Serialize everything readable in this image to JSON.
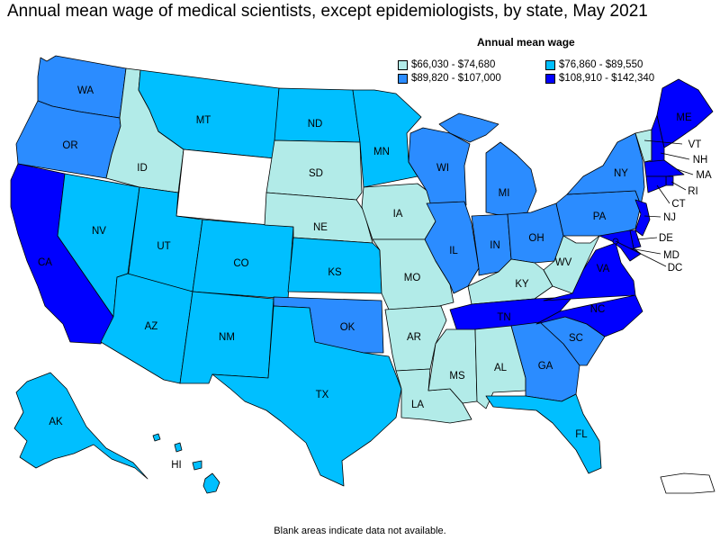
{
  "title": "Annual mean wage of medical scientists, except epidemiologists, by state, May 2021",
  "legend": {
    "title": "Annual mean wage",
    "items": [
      {
        "label": "$66,030 - $74,680",
        "color": "#b2ebe8"
      },
      {
        "label": "$76,860 - $89,550",
        "color": "#00bfff"
      },
      {
        "label": "$89,820 - $107,000",
        "color": "#2b8cff"
      },
      {
        "label": "$108,910 - $142,340",
        "color": "#0000ff"
      }
    ]
  },
  "footnote": "Blank areas indicate data not available.",
  "no_data_color": "#ffffff",
  "states": {
    "WA": {
      "label": "WA",
      "tier": 2
    },
    "OR": {
      "label": "OR",
      "tier": 2
    },
    "CA": {
      "label": "CA",
      "tier": 3
    },
    "NV": {
      "label": "NV",
      "tier": 1
    },
    "ID": {
      "label": "ID",
      "tier": 0
    },
    "MT": {
      "label": "MT",
      "tier": 1
    },
    "WY": {
      "label": "",
      "tier": -1
    },
    "UT": {
      "label": "UT",
      "tier": 1
    },
    "AZ": {
      "label": "AZ",
      "tier": 1
    },
    "CO": {
      "label": "CO",
      "tier": 1
    },
    "NM": {
      "label": "NM",
      "tier": 1
    },
    "ND": {
      "label": "ND",
      "tier": 1
    },
    "SD": {
      "label": "SD",
      "tier": 0
    },
    "NE": {
      "label": "NE",
      "tier": 0
    },
    "KS": {
      "label": "KS",
      "tier": 1
    },
    "OK": {
      "label": "OK",
      "tier": 2
    },
    "TX": {
      "label": "TX",
      "tier": 1
    },
    "MN": {
      "label": "MN",
      "tier": 1
    },
    "IA": {
      "label": "IA",
      "tier": 0
    },
    "MO": {
      "label": "MO",
      "tier": 0
    },
    "AR": {
      "label": "AR",
      "tier": 0
    },
    "LA": {
      "label": "LA",
      "tier": 0
    },
    "WI": {
      "label": "WI",
      "tier": 2
    },
    "IL": {
      "label": "IL",
      "tier": 2
    },
    "MI": {
      "label": "MI",
      "tier": 2
    },
    "IN": {
      "label": "IN",
      "tier": 2
    },
    "OH": {
      "label": "OH",
      "tier": 2
    },
    "KY": {
      "label": "KY",
      "tier": 0
    },
    "TN": {
      "label": "TN",
      "tier": 3
    },
    "MS": {
      "label": "MS",
      "tier": 0
    },
    "AL": {
      "label": "AL",
      "tier": 0
    },
    "GA": {
      "label": "GA",
      "tier": 2
    },
    "FL": {
      "label": "FL",
      "tier": 1
    },
    "SC": {
      "label": "SC",
      "tier": 2
    },
    "NC": {
      "label": "NC",
      "tier": 3
    },
    "VA": {
      "label": "VA",
      "tier": 3
    },
    "WV": {
      "label": "WV",
      "tier": 0
    },
    "PA": {
      "label": "PA",
      "tier": 2
    },
    "NY": {
      "label": "NY",
      "tier": 2
    },
    "VT": {
      "label": "VT",
      "tier": 0
    },
    "NH": {
      "label": "NH",
      "tier": 3
    },
    "ME": {
      "label": "ME",
      "tier": 3
    },
    "MA": {
      "label": "MA",
      "tier": 3
    },
    "RI": {
      "label": "RI",
      "tier": 3
    },
    "CT": {
      "label": "CT",
      "tier": 3
    },
    "NJ": {
      "label": "NJ",
      "tier": 3
    },
    "DE": {
      "label": "DE",
      "tier": 3
    },
    "MD": {
      "label": "MD",
      "tier": 3
    },
    "DC": {
      "label": "DC",
      "tier": 3
    },
    "AK": {
      "label": "AK",
      "tier": 1
    },
    "HI": {
      "label": "HI",
      "tier": 1
    },
    "PR": {
      "label": "",
      "tier": -1
    }
  }
}
